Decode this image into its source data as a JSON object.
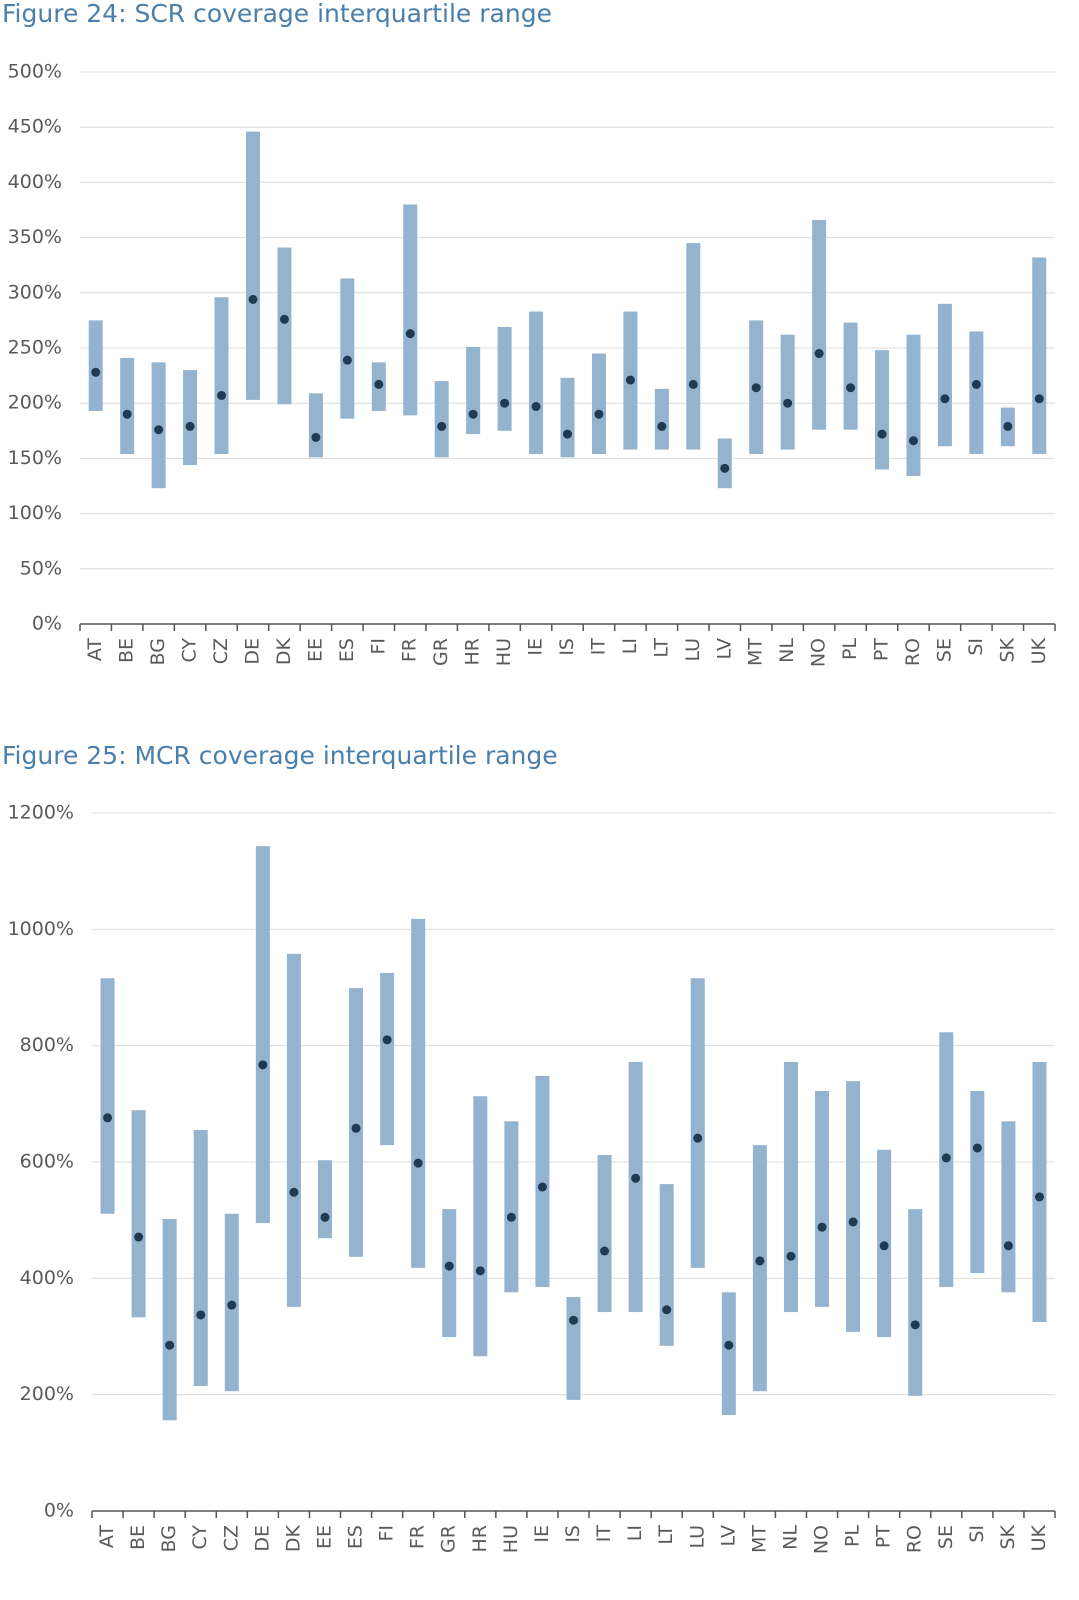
{
  "chart_data": [
    {
      "type": "range",
      "title": "Figure 24: SCR coverage interquartile range",
      "categories": [
        "AT",
        "BE",
        "BG",
        "CY",
        "CZ",
        "DE",
        "DK",
        "EE",
        "ES",
        "FI",
        "FR",
        "GR",
        "HR",
        "HU",
        "IE",
        "IS",
        "IT",
        "LI",
        "LT",
        "LU",
        "LV",
        "MT",
        "NL",
        "NO",
        "PL",
        "PT",
        "RO",
        "SE",
        "SI",
        "SK",
        "UK"
      ],
      "low": [
        193,
        154,
        123,
        144,
        154,
        203,
        199,
        151,
        186,
        193,
        189,
        151,
        172,
        175,
        154,
        151,
        154,
        158,
        158,
        158,
        123,
        154,
        158,
        176,
        176,
        140,
        134,
        161,
        154,
        161,
        154
      ],
      "high": [
        275,
        241,
        237,
        230,
        296,
        446,
        341,
        209,
        313,
        237,
        380,
        220,
        251,
        269,
        283,
        223,
        245,
        283,
        213,
        345,
        168,
        275,
        262,
        366,
        273,
        248,
        262,
        290,
        265,
        196,
        332
      ],
      "median": [
        228,
        190,
        176,
        179,
        207,
        294,
        276,
        169,
        239,
        217,
        263,
        179,
        190,
        200,
        197,
        172,
        190,
        221,
        179,
        217,
        141,
        214,
        200,
        245,
        214,
        172,
        166,
        204,
        217,
        179,
        204
      ],
      "range_color": "#93b3cf",
      "median_color": "#1f3a52",
      "ylim": [
        0,
        500
      ],
      "yticks": [
        {
          "value": 0,
          "label": "0%"
        },
        {
          "value": 50,
          "label": "50%"
        },
        {
          "value": 100,
          "label": "100%"
        },
        {
          "value": 150,
          "label": "150%"
        },
        {
          "value": 200,
          "label": "200%"
        },
        {
          "value": 250,
          "label": "250%"
        },
        {
          "value": 300,
          "label": "300%"
        },
        {
          "value": 350,
          "label": "350%"
        },
        {
          "value": 400,
          "label": "400%"
        },
        {
          "value": 450,
          "label": "450%"
        },
        {
          "value": 500,
          "label": "500%"
        }
      ],
      "grid": true
    },
    {
      "type": "range",
      "title": "Figure 25: MCR coverage interquartile range",
      "categories": [
        "AT",
        "BE",
        "BG",
        "CY",
        "CZ",
        "DE",
        "DK",
        "EE",
        "ES",
        "FI",
        "FR",
        "GR",
        "HR",
        "HU",
        "IE",
        "IS",
        "IT",
        "LI",
        "LT",
        "LU",
        "LV",
        "MT",
        "NL",
        "NO",
        "PL",
        "PT",
        "RO",
        "SE",
        "SI",
        "SK",
        "UK"
      ],
      "low": [
        511,
        333,
        156,
        215,
        206,
        495,
        351,
        469,
        437,
        629,
        418,
        299,
        266,
        376,
        385,
        191,
        342,
        342,
        284,
        418,
        165,
        206,
        342,
        351,
        308,
        299,
        198,
        385,
        409,
        376,
        325
      ],
      "high": [
        916,
        689,
        502,
        655,
        511,
        1143,
        958,
        603,
        899,
        925,
        1018,
        519,
        713,
        670,
        748,
        368,
        612,
        772,
        562,
        916,
        376,
        629,
        772,
        722,
        739,
        621,
        519,
        823,
        722,
        670,
        772
      ],
      "median": [
        676,
        471,
        285,
        337,
        354,
        767,
        548,
        505,
        658,
        810,
        598,
        421,
        413,
        505,
        557,
        328,
        447,
        572,
        346,
        641,
        285,
        430,
        438,
        488,
        497,
        456,
        320,
        607,
        624,
        456,
        540
      ],
      "range_color": "#93b3cf",
      "median_color": "#1f3a52",
      "ylim": [
        0,
        1200
      ],
      "yticks": [
        {
          "value": 0,
          "label": "0%"
        },
        {
          "value": 200,
          "label": "200%"
        },
        {
          "value": 400,
          "label": "400%"
        },
        {
          "value": 600,
          "label": "600%"
        },
        {
          "value": 800,
          "label": "800%"
        },
        {
          "value": 1000,
          "label": "1000%"
        },
        {
          "value": 1200,
          "label": "1200%"
        }
      ],
      "grid": true
    }
  ]
}
